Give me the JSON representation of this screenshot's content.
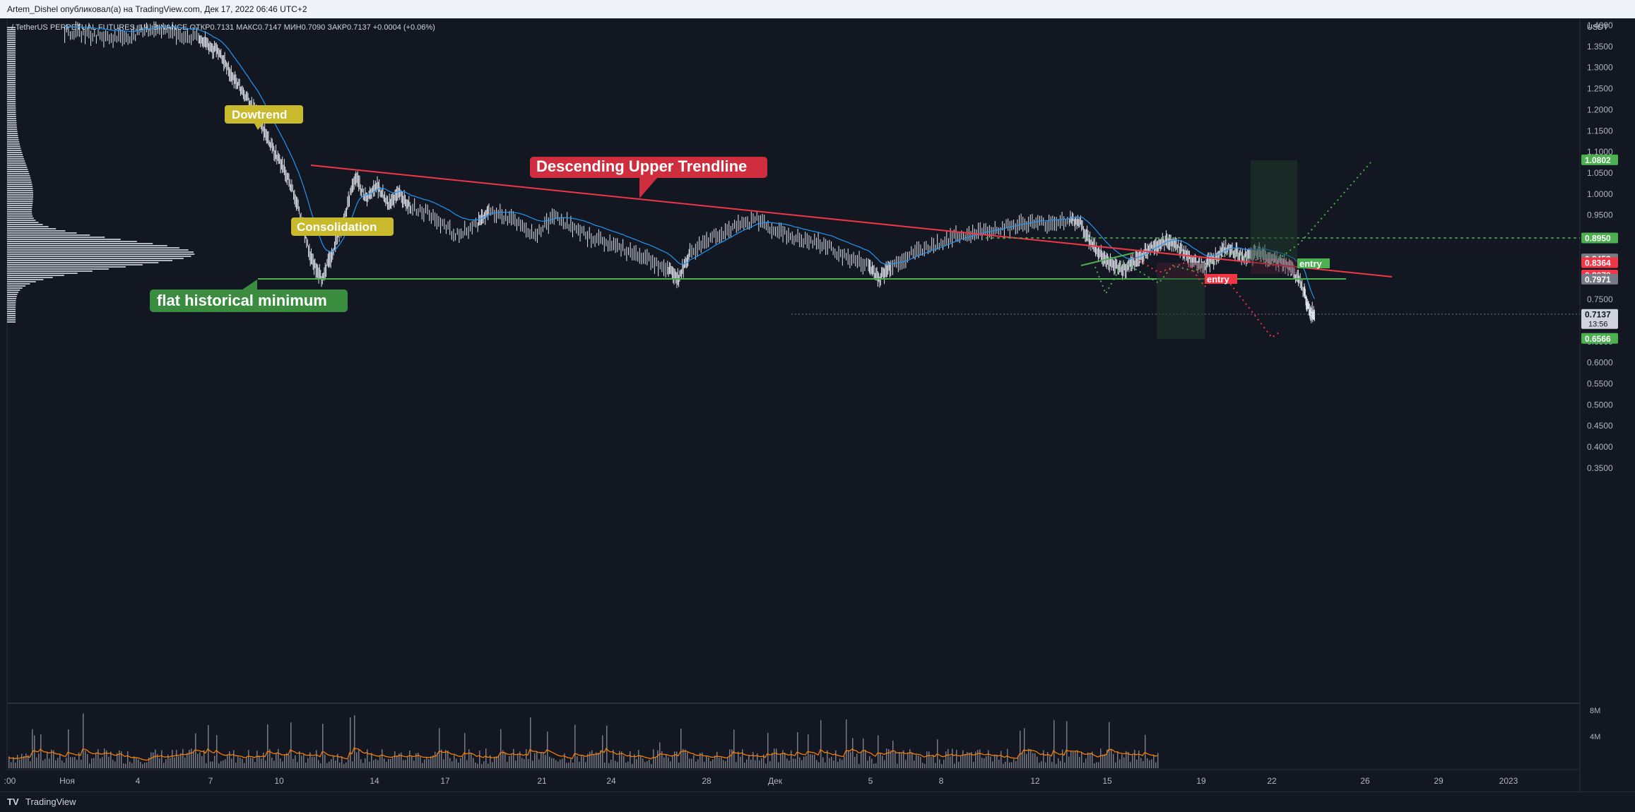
{
  "header": {
    "publish_line": "Artem_Dishel опубликовал(а) на TradingView.com, Дек 17, 2022 06:46 UTC+2"
  },
  "footer": {
    "logo": "TV",
    "brand": "TradingView"
  },
  "chart_data": {
    "type": "candlestick",
    "symbol_line": "/ TetherUS PERPETUAL FUTURES, 1Ч, BINANCE  ОТКР0.7131  МАКС0.7147  МИН0.7090  ЗАКР0.7137  +0.0004 (+0.06%)",
    "currency": "USDT",
    "yticks": [
      "1.4000",
      "1.3500",
      "1.3000",
      "1.2500",
      "1.2000",
      "1.1500",
      "1.1000",
      "1.0500",
      "1.0000",
      "0.9500",
      "0.8500",
      "0.7500",
      "0.6500",
      "0.6000",
      "0.5500",
      "0.5000",
      "0.4500",
      "0.4000",
      "0.3500"
    ],
    "ylim": [
      0.33,
      1.41
    ],
    "xticks": [
      ":00",
      "Ноя",
      "4",
      "7",
      "10",
      "14",
      "17",
      "21",
      "24",
      "28",
      "Дек",
      "5",
      "8",
      "12",
      "15",
      "19",
      "22",
      "26",
      "29",
      "2023"
    ],
    "price_tags": [
      {
        "value": "1.0802",
        "color": "#4caf50"
      },
      {
        "value": "0.8950",
        "color": "#4caf50"
      },
      {
        "value": "0.8453",
        "color": "#787b86"
      },
      {
        "value": "0.8364",
        "color": "#f23645"
      },
      {
        "value": "0.8070",
        "color": "#f23645"
      },
      {
        "value": "0.7971",
        "color": "#787b86"
      },
      {
        "value": "0.7137",
        "color": "#d1d4dc",
        "sub": "13:56"
      },
      {
        "value": "0.6566",
        "color": "#4caf50"
      }
    ],
    "volume_ticks": [
      "8M",
      "4M"
    ],
    "price_path": [
      [
        0.02,
        1.385
      ],
      [
        0.04,
        1.38
      ],
      [
        0.06,
        1.37
      ],
      [
        0.08,
        1.375
      ],
      [
        0.1,
        1.395
      ],
      [
        0.12,
        1.38
      ],
      [
        0.14,
        1.37
      ],
      [
        0.15,
        1.35
      ],
      [
        0.16,
        1.33
      ],
      [
        0.17,
        1.28
      ],
      [
        0.18,
        1.24
      ],
      [
        0.19,
        1.2
      ],
      [
        0.2,
        1.14
      ],
      [
        0.21,
        1.09
      ],
      [
        0.22,
        1.04
      ],
      [
        0.23,
        0.96
      ],
      [
        0.24,
        0.85
      ],
      [
        0.25,
        0.8
      ],
      [
        0.26,
        0.86
      ],
      [
        0.27,
        0.94
      ],
      [
        0.28,
        1.04
      ],
      [
        0.29,
        0.99
      ],
      [
        0.3,
        1.02
      ],
      [
        0.31,
        0.98
      ],
      [
        0.32,
        1.0
      ],
      [
        0.33,
        0.97
      ],
      [
        0.35,
        0.95
      ],
      [
        0.37,
        0.9
      ],
      [
        0.39,
        0.93
      ],
      [
        0.4,
        0.96
      ],
      [
        0.42,
        0.94
      ],
      [
        0.44,
        0.9
      ],
      [
        0.46,
        0.95
      ],
      [
        0.48,
        0.91
      ],
      [
        0.5,
        0.89
      ],
      [
        0.52,
        0.87
      ],
      [
        0.54,
        0.85
      ],
      [
        0.56,
        0.82
      ],
      [
        0.57,
        0.8
      ],
      [
        0.58,
        0.86
      ],
      [
        0.6,
        0.9
      ],
      [
        0.62,
        0.92
      ],
      [
        0.64,
        0.94
      ],
      [
        0.66,
        0.91
      ],
      [
        0.68,
        0.89
      ],
      [
        0.7,
        0.88
      ],
      [
        0.72,
        0.85
      ],
      [
        0.74,
        0.83
      ],
      [
        0.75,
        0.8
      ],
      [
        0.76,
        0.83
      ],
      [
        0.78,
        0.86
      ],
      [
        0.8,
        0.88
      ],
      [
        0.82,
        0.9
      ],
      [
        0.84,
        0.91
      ],
      [
        0.86,
        0.92
      ],
      [
        0.88,
        0.93
      ],
      [
        0.9,
        0.93
      ],
      [
        0.92,
        0.94
      ],
      [
        0.93,
        0.93
      ],
      [
        0.94,
        0.88
      ],
      [
        0.95,
        0.85
      ],
      [
        0.96,
        0.83
      ],
      [
        0.97,
        0.82
      ],
      [
        0.98,
        0.84
      ],
      [
        0.99,
        0.87
      ],
      [
        1.0,
        0.88
      ],
      [
        1.01,
        0.89
      ],
      [
        1.02,
        0.87
      ],
      [
        1.03,
        0.84
      ],
      [
        1.04,
        0.83
      ],
      [
        1.05,
        0.85
      ],
      [
        1.06,
        0.87
      ],
      [
        1.07,
        0.86
      ],
      [
        1.08,
        0.85
      ],
      [
        1.09,
        0.86
      ],
      [
        1.1,
        0.85
      ],
      [
        1.11,
        0.84
      ],
      [
        1.12,
        0.82
      ],
      [
        1.13,
        0.77
      ],
      [
        1.135,
        0.72
      ],
      [
        1.14,
        0.7137
      ]
    ],
    "annotations": [
      {
        "text": "Dowtrend",
        "bg": "#c8b92d"
      },
      {
        "text": "Consolidation",
        "bg": "#c8b92d"
      },
      {
        "text": "Descending Upper Trendline",
        "bg": "#d02d3f"
      },
      {
        "text": "flat historical minimum",
        "bg": "#3a8c3f"
      },
      {
        "text": "entry",
        "bg": "#4caf50"
      },
      {
        "text": "entry",
        "bg": "#f23645"
      }
    ]
  }
}
